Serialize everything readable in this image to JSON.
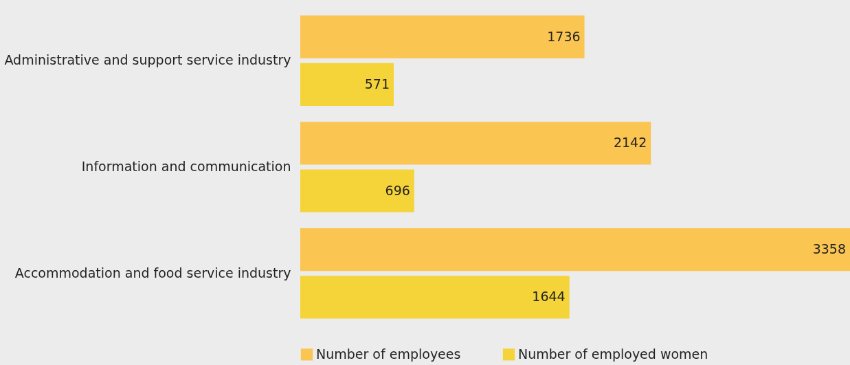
{
  "chart_data": {
    "type": "bar",
    "orientation": "horizontal",
    "categories": [
      "Administrative and support service industry",
      "Information and communication",
      "Accommodation and food service industry"
    ],
    "series": [
      {
        "name": "Number of employees",
        "color": "#fbc552",
        "values": [
          1736,
          2142,
          3358
        ]
      },
      {
        "name": "Number of employed women",
        "color": "#f5d43a",
        "values": [
          571,
          696,
          1644
        ]
      }
    ],
    "data_labels": true,
    "legend": "bottom",
    "grid": false,
    "tick_labels": "y"
  }
}
